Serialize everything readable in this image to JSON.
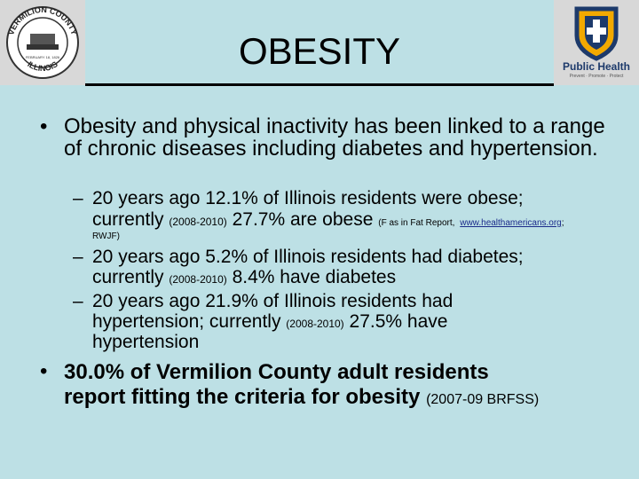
{
  "logos": {
    "left": {
      "text_top": "VERMILION COUNTY",
      "text_bottom": "ILLINOIS",
      "text_date": "FEBRUARY 18, 1826"
    },
    "right": {
      "text": "Public Health",
      "tagline": "Prevent · Promote · Protect"
    }
  },
  "title": "OBESITY",
  "bullets": {
    "main_1": "Obesity and physical inactivity has been linked to a range of chronic diseases including diabetes and hypertension.",
    "sub_1": {
      "a": "20 years ago 12.1% of Illinois residents were obese;",
      "b": "currently",
      "b_small": "(2008-2010)",
      "c": "27.7% are obese",
      "note_pre": "(F as in Fat Report,",
      "note_link": "www.healthamericans.org",
      "note_post": ";",
      "note2": "RWJF)"
    },
    "sub_2": {
      "a": "20 years ago 5.2% of Illinois residents had diabetes;",
      "b": "currently",
      "b_small": "(2008-2010)",
      "c": "8.4% have diabetes"
    },
    "sub_3": {
      "a": "20 years ago 21.9% of Illinois residents had",
      "b": "hypertension; currently",
      "b_small": "(2008-2010)",
      "c": "27.5% have",
      "d": "hypertension"
    },
    "main_2": {
      "a": "30.0% of Vermilion County adult residents",
      "b": "report fitting the criteria for obesity",
      "note": "(2007-09 BRFSS)"
    },
    "bullet_glyph": "•",
    "dash_glyph": "–"
  }
}
